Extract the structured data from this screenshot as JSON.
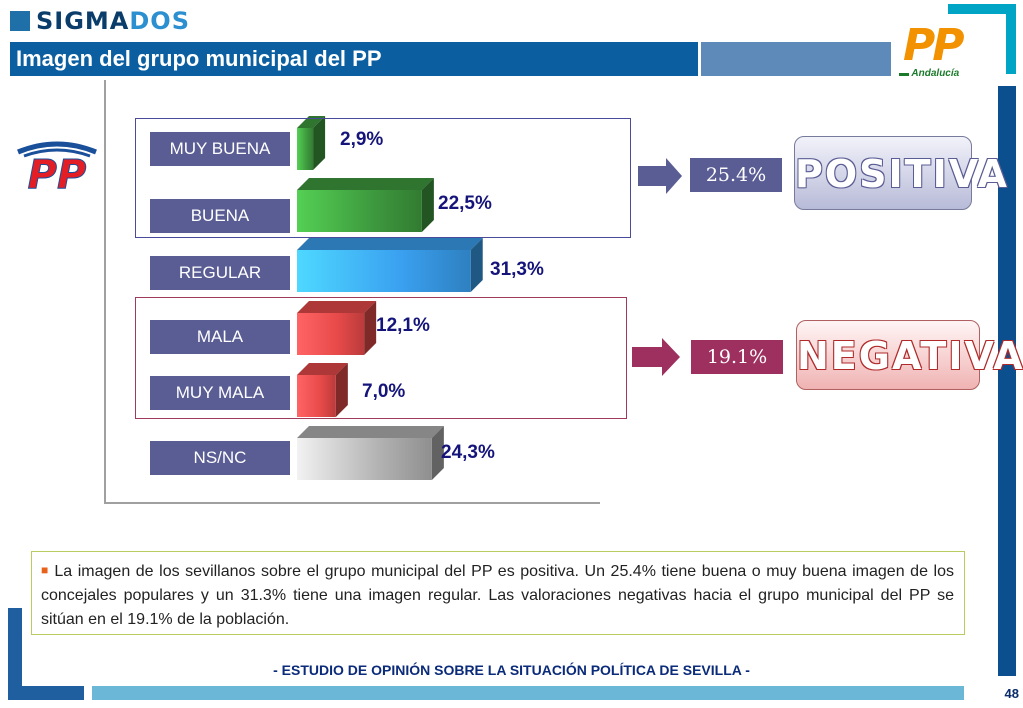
{
  "brand": {
    "prefix": "SIGMA",
    "suffix": "DOS"
  },
  "title": "Imagen del grupo municipal del PP",
  "logo": {
    "text": "PP",
    "subtitle": "Andalucía"
  },
  "pp_mark": "PP",
  "chart_data": {
    "type": "bar",
    "orientation": "horizontal",
    "categories": [
      "MUY BUENA",
      "BUENA",
      "REGULAR",
      "MALA",
      "MUY MALA",
      "NS/NC"
    ],
    "values": [
      2.9,
      22.5,
      31.3,
      12.1,
      7.0,
      24.3
    ],
    "value_labels": [
      "2,9%",
      "22,5%",
      "31,3%",
      "12,1%",
      "7,0%",
      "24,3%"
    ],
    "unit": "%",
    "xlim": [
      0,
      40
    ],
    "colors": [
      "#3e9a3e",
      "#3e9a3e",
      "#3aa0f0",
      "#e84a4a",
      "#e84a4a",
      "#b3b3b3"
    ],
    "groups": [
      {
        "label": "POSITIVA",
        "total": "25.4%",
        "members": [
          "MUY BUENA",
          "BUENA"
        ],
        "color": "#5a5c94"
      },
      {
        "label": "NEGATIVA",
        "total": "19.1%",
        "members": [
          "MALA",
          "MUY MALA"
        ],
        "color": "#9e3060"
      }
    ]
  },
  "note": "La imagen de los sevillanos sobre el grupo municipal del PP es positiva. Un 25.4% tiene buena o muy buena imagen de los concejales populares y un 31.3% tiene una imagen regular. Las valoraciones negativas hacia el grupo municipal del PP se sitúan en el 19.1% de la población.",
  "footer": "- ESTUDIO DE OPINIÓN SOBRE LA SITUACIÓN POLÍTICA DE SEVILLA  -",
  "page_number": "48"
}
